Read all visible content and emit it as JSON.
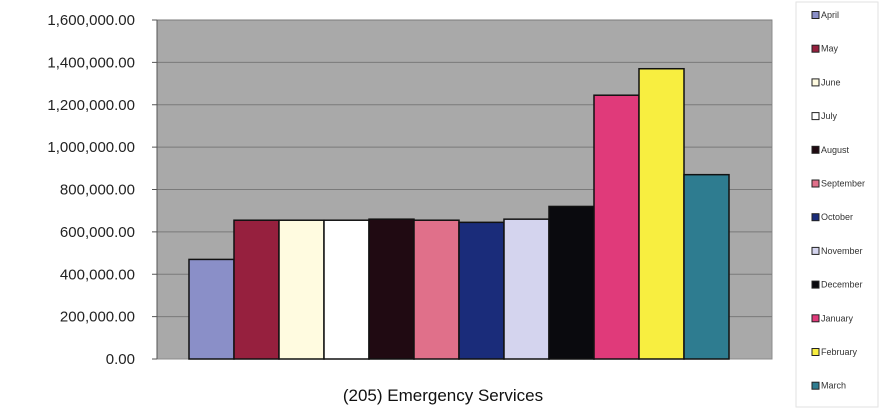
{
  "chart_data": {
    "type": "bar",
    "categories": [
      "(205) Emergency Services"
    ],
    "series": [
      {
        "name": "April",
        "values": [
          470000
        ],
        "color": "#8a8fc8"
      },
      {
        "name": "May",
        "values": [
          655000
        ],
        "color": "#96203e"
      },
      {
        "name": "June",
        "values": [
          655000
        ],
        "color": "#fffbe0"
      },
      {
        "name": "July",
        "values": [
          655000
        ],
        "color": "#ffffff"
      },
      {
        "name": "August",
        "values": [
          660000
        ],
        "color": "#200a12"
      },
      {
        "name": "September",
        "values": [
          655000
        ],
        "color": "#e0708a"
      },
      {
        "name": "October",
        "values": [
          645000
        ],
        "color": "#1a2c7a"
      },
      {
        "name": "November",
        "values": [
          660000
        ],
        "color": "#d4d4ee"
      },
      {
        "name": "December",
        "values": [
          720000
        ],
        "color": "#0a0a0e"
      },
      {
        "name": "January",
        "values": [
          1245000
        ],
        "color": "#e03a7a"
      },
      {
        "name": "February",
        "values": [
          1370000
        ],
        "color": "#f8ee40"
      },
      {
        "name": "March",
        "values": [
          870000
        ],
        "color": "#2e7c90"
      }
    ],
    "ylim": [
      0,
      1600000
    ],
    "yticks": [
      "0.00",
      "200,000.00",
      "400,000.00",
      "600,000.00",
      "800,000.00",
      "1,000,000.00",
      "1,200,000.00",
      "1,400,000.00",
      "1,600,000.00"
    ],
    "grid": true,
    "legend_position": "right",
    "plot_background": "#a8a8a8",
    "xlabel": "",
    "ylabel": ""
  }
}
